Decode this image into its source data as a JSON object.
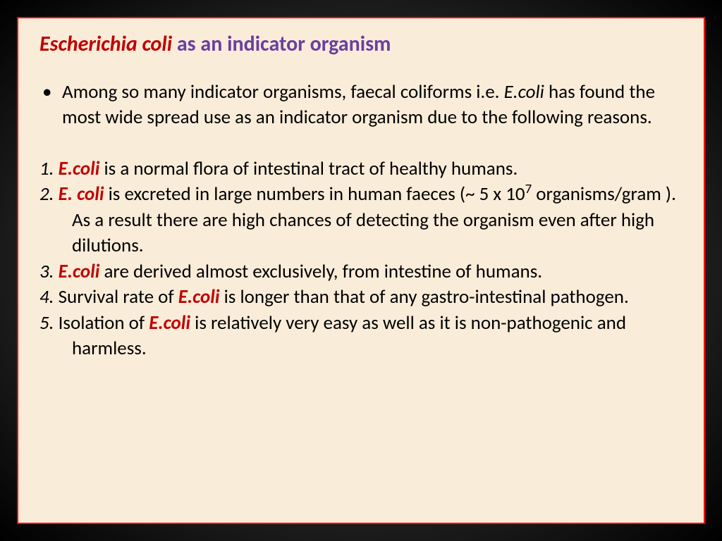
{
  "title": {
    "species": "Escherichia coli",
    "rest": " as an indicator organism"
  },
  "intro": {
    "pre": "Among so many indicator organisms, faecal coliforms i.e. ",
    "ecoli": "E.coli",
    "post": " has found the most wide spread use as an indicator organism due to the following reasons."
  },
  "points": [
    {
      "num": "1.  ",
      "ecoli": "E.coli",
      "rest": " is a normal flora of intestinal tract of healthy humans."
    },
    {
      "num": "2.  ",
      "ecoli": "E. coli",
      "rest_a": " is excreted in large numbers in human faeces (~ 5 x 10",
      "sup": "7",
      "rest_b": " organisms/gram ). As a result there are high chances of detecting the organism even after high dilutions."
    },
    {
      "num": "3.  ",
      "ecoli": "E.coli",
      "rest": " are derived almost exclusively, from intestine of humans."
    },
    {
      "num": "4.  ",
      "pre": "Survival rate of ",
      "ecoli": "E.coli",
      "rest": " is longer than that of any gastro-intestinal pathogen."
    },
    {
      "num": "5.  ",
      "pre": "Isolation of ",
      "ecoli": "E.coli",
      "rest": " is relatively very easy as well as it is non-pathogenic and harmless."
    }
  ],
  "colors": {
    "slide_bg": "#f9ecd9",
    "border": "#ff0000",
    "title_red": "#c00000",
    "title_purple": "#6b3fa0",
    "body_text": "#000000",
    "ecoli_red": "#c00000"
  },
  "fonts": {
    "title_size_pt": 22,
    "body_size_pt": 20
  }
}
